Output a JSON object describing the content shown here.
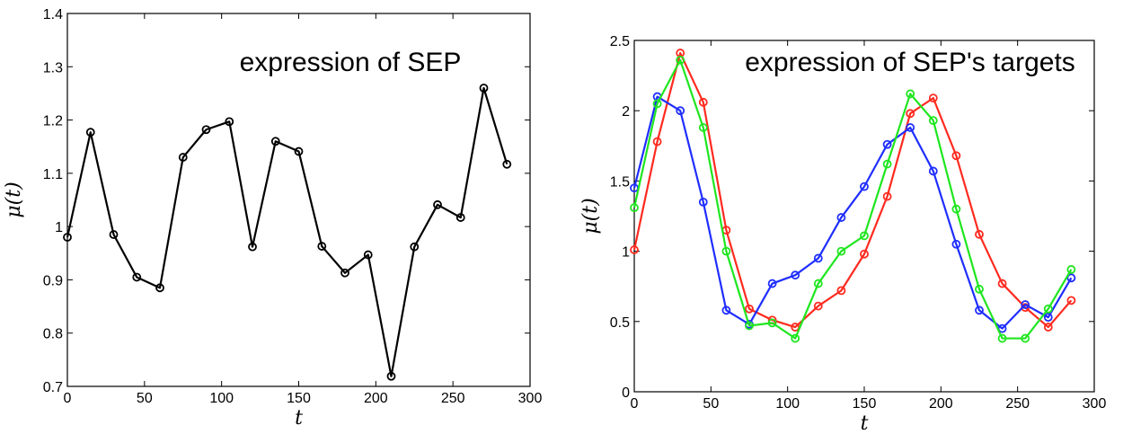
{
  "chart_data": [
    {
      "type": "line",
      "title": "expression of SEP",
      "xlabel": "t",
      "ylabel": "μ(t)",
      "xlim": [
        0,
        300
      ],
      "ylim": [
        0.7,
        1.4
      ],
      "xticks": [
        0,
        50,
        100,
        150,
        200,
        250,
        300
      ],
      "yticks": [
        0.7,
        0.8,
        0.9,
        1,
        1.1,
        1.2,
        1.3,
        1.4
      ],
      "xtick_labels": [
        "0",
        "50",
        "100",
        "150",
        "200",
        "250",
        "300"
      ],
      "ytick_labels": [
        "0.7",
        "0.8",
        "0.9",
        "1",
        "1.1",
        "1.2",
        "1.3",
        "1.4"
      ],
      "x": [
        0,
        15,
        30,
        45,
        60,
        75,
        90,
        105,
        120,
        135,
        150,
        165,
        180,
        195,
        210,
        225,
        240,
        255,
        270,
        285
      ],
      "series": [
        {
          "color": "#000000",
          "values": [
            0.98,
            1.177,
            0.985,
            0.905,
            0.885,
            1.13,
            1.182,
            1.197,
            0.962,
            1.16,
            1.141,
            0.963,
            0.913,
            0.947,
            0.719,
            0.962,
            1.041,
            1.017,
            1.26,
            1.117
          ]
        }
      ],
      "grid": false,
      "marker": "circle"
    },
    {
      "type": "line",
      "title": "expression of SEP's targets",
      "xlabel": "t",
      "ylabel": "μ(t)",
      "xlim": [
        0,
        300
      ],
      "ylim": [
        0,
        2.5
      ],
      "xticks": [
        0,
        50,
        100,
        150,
        200,
        250,
        300
      ],
      "yticks": [
        0,
        0.5,
        1,
        1.5,
        2,
        2.5
      ],
      "xtick_labels": [
        "0",
        "50",
        "100",
        "150",
        "200",
        "250",
        "300"
      ],
      "ytick_labels": [
        "0",
        "0.5",
        "1",
        "1.5",
        "2",
        "2.5"
      ],
      "x": [
        0,
        15,
        30,
        45,
        60,
        75,
        90,
        105,
        120,
        135,
        150,
        165,
        180,
        195,
        210,
        225,
        240,
        255,
        270,
        285
      ],
      "series": [
        {
          "color": "#ff2a1f",
          "values": [
            1.01,
            1.78,
            2.41,
            2.06,
            1.15,
            0.59,
            0.51,
            0.46,
            0.61,
            0.72,
            0.98,
            1.39,
            1.98,
            2.09,
            1.68,
            1.12,
            0.77,
            0.6,
            0.46,
            0.65
          ]
        },
        {
          "color": "#1f2eff",
          "values": [
            1.45,
            2.1,
            2.0,
            1.35,
            0.58,
            0.48,
            0.77,
            0.83,
            0.95,
            1.24,
            1.46,
            1.76,
            1.88,
            1.57,
            1.05,
            0.58,
            0.45,
            0.62,
            0.53,
            0.81
          ]
        },
        {
          "color": "#1fe61f",
          "values": [
            1.31,
            2.05,
            2.36,
            1.88,
            1.0,
            0.47,
            0.49,
            0.38,
            0.77,
            1.0,
            1.11,
            1.62,
            2.12,
            1.93,
            1.3,
            0.73,
            0.38,
            0.38,
            0.59,
            0.87
          ]
        }
      ],
      "grid": false,
      "marker": "circle"
    }
  ]
}
